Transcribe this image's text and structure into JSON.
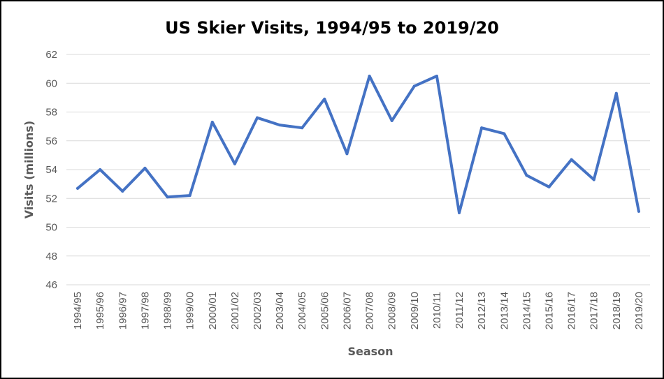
{
  "chart_data": {
    "type": "line",
    "title": "US Skier Visits, 1994/95 to 2019/20",
    "xlabel": "Season",
    "ylabel": "Visits (millions)",
    "ylim": [
      46,
      62
    ],
    "yticks": [
      46,
      48,
      50,
      52,
      54,
      56,
      58,
      60,
      62
    ],
    "grid": true,
    "line_color": "#4472C4",
    "categories": [
      "1994/95",
      "1995/96",
      "1996/97",
      "1997/98",
      "1998/99",
      "1999/00",
      "2000/01",
      "2001/02",
      "2002/03",
      "2003/04",
      "2004/05",
      "2005/06",
      "2006/07",
      "2007/08",
      "2008/09",
      "2009/10",
      "2010/11",
      "2011/12",
      "2012/13",
      "2013/14",
      "2014/15",
      "2015/16",
      "2016/17",
      "2017/18",
      "2018/19",
      "2019/20"
    ],
    "values": [
      52.7,
      54.0,
      52.5,
      54.1,
      52.1,
      52.2,
      57.3,
      54.4,
      57.6,
      57.1,
      56.9,
      58.9,
      55.1,
      60.5,
      57.4,
      59.8,
      60.5,
      51.0,
      56.9,
      56.5,
      53.6,
      52.8,
      54.7,
      53.3,
      59.3,
      51.1
    ]
  }
}
